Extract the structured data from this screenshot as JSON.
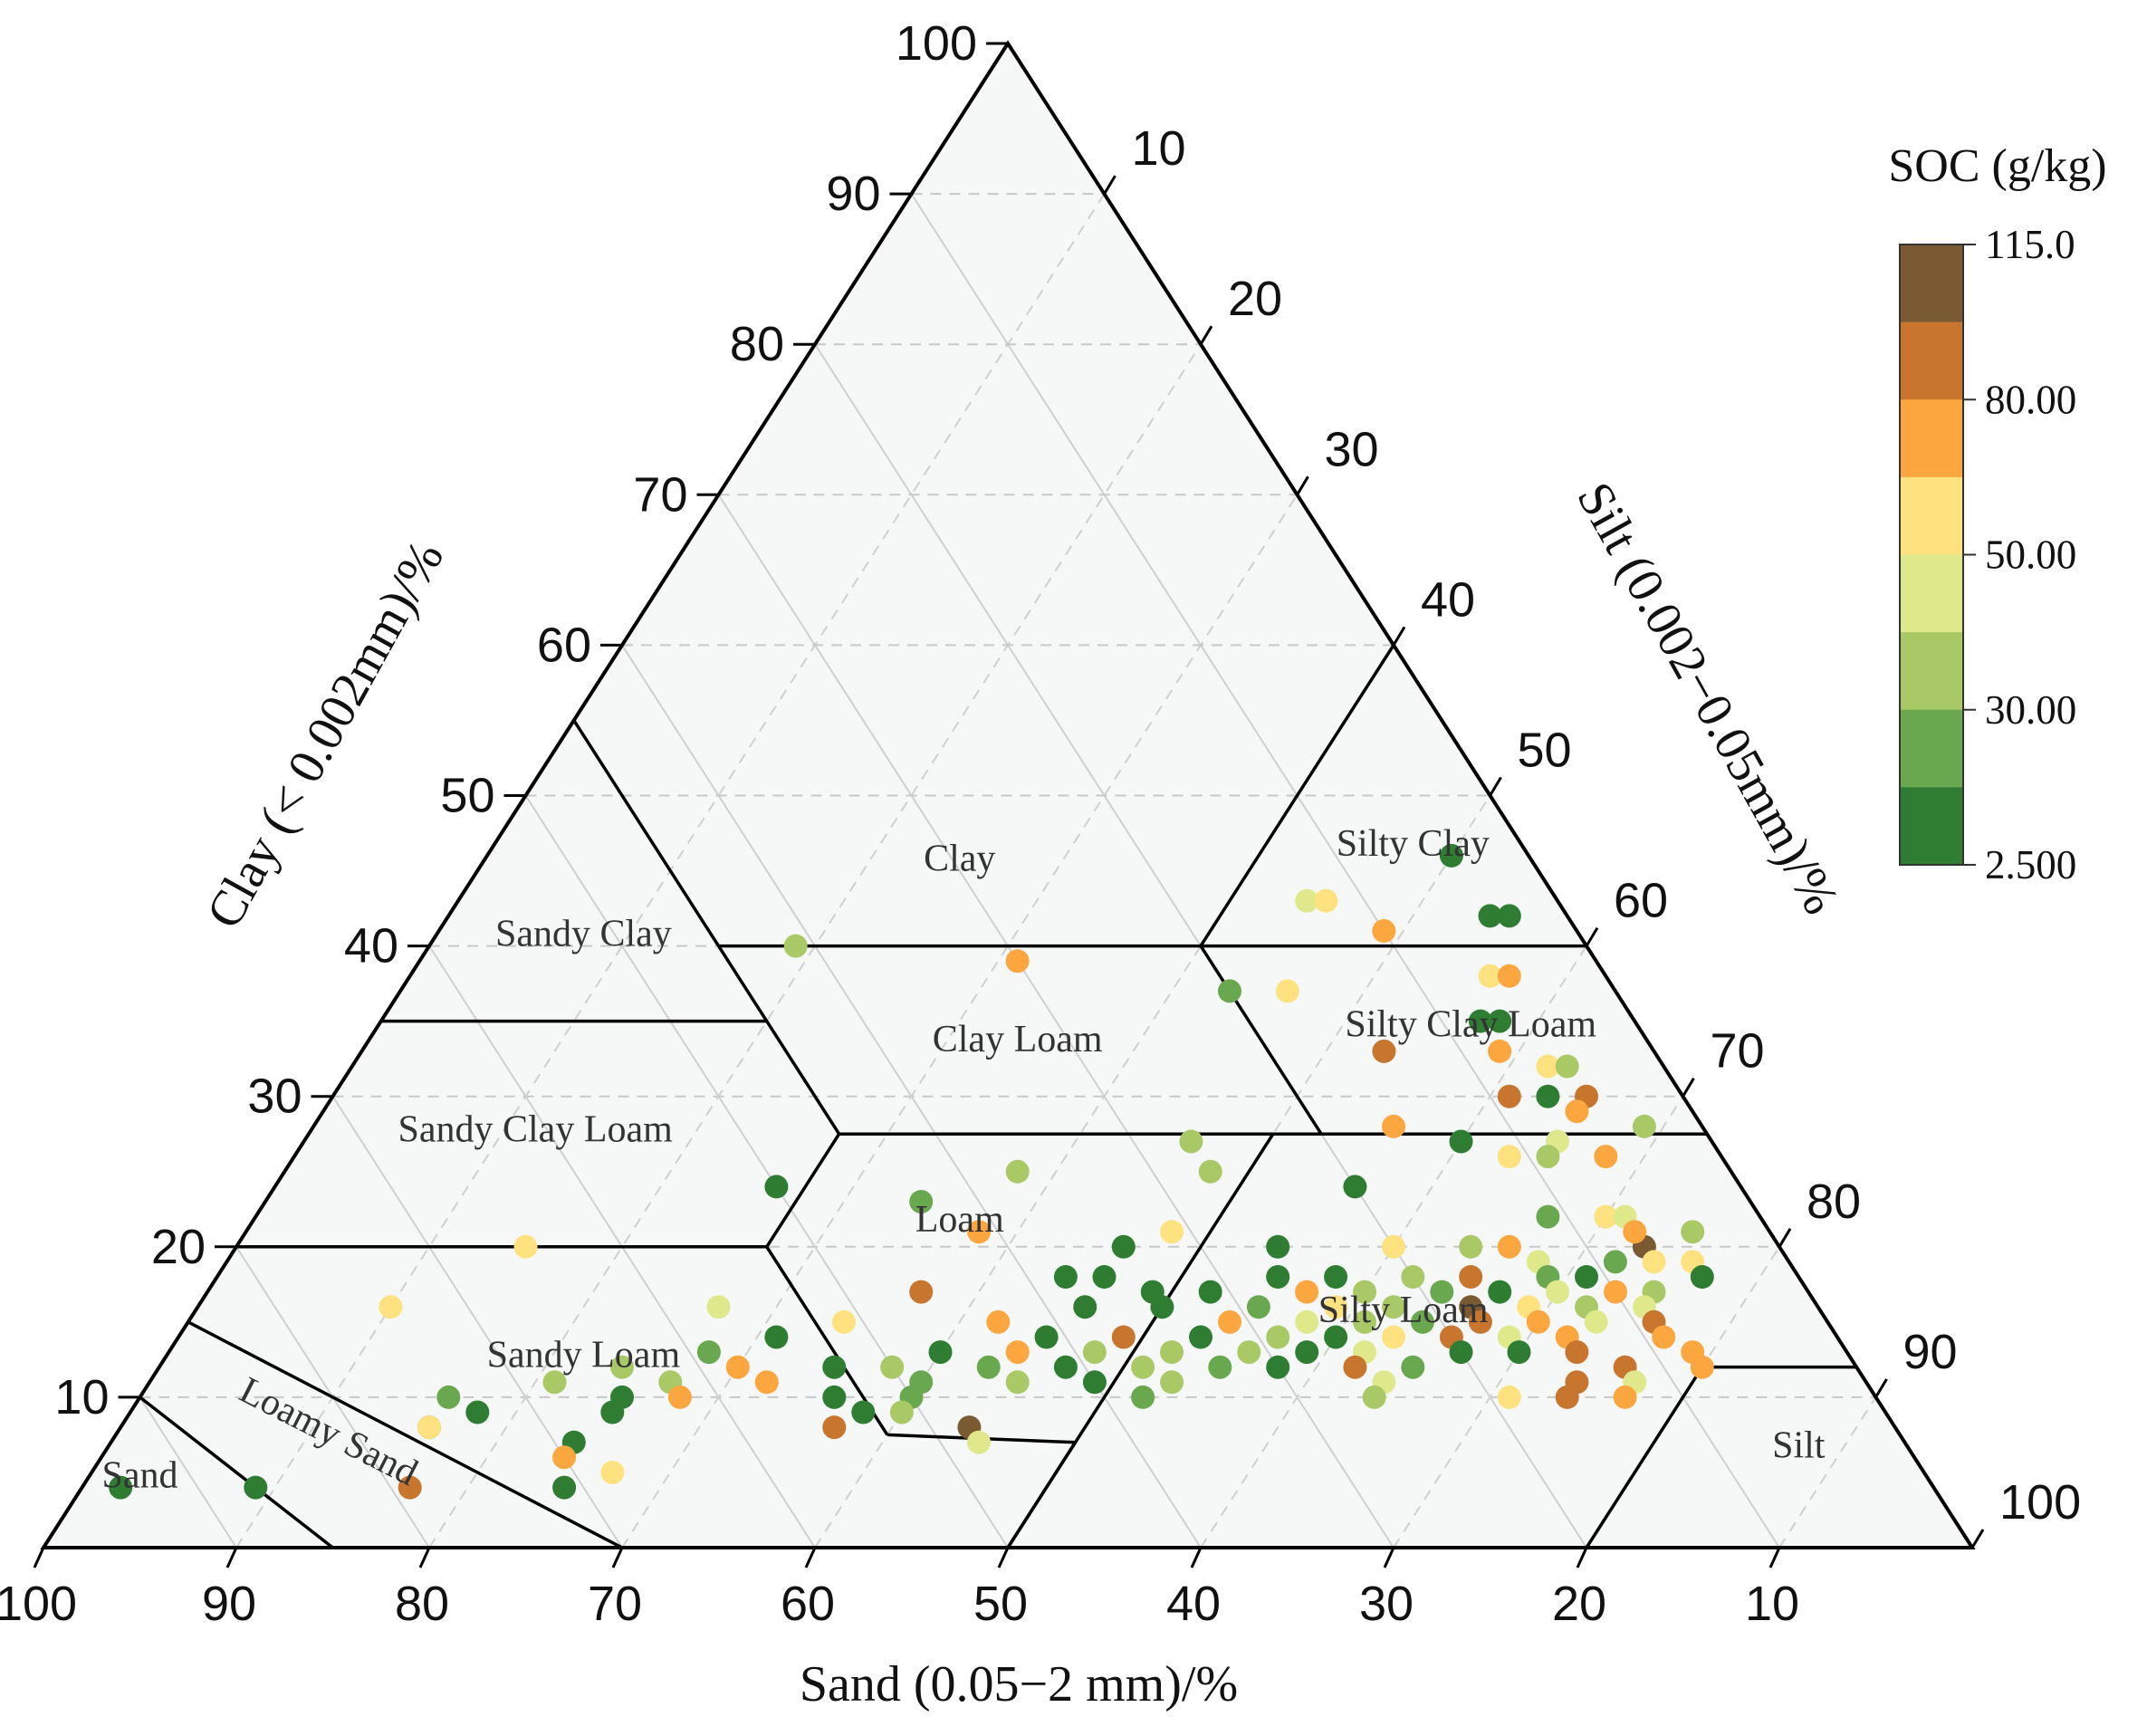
{
  "chart_data": {
    "type": "scatter",
    "subtype": "ternary",
    "axes": {
      "sand": {
        "title": "Sand (0.05−2 mm)/%",
        "ticks": [
          "100",
          "90",
          "80",
          "70",
          "60",
          "50",
          "40",
          "30",
          "20",
          "10"
        ]
      },
      "clay": {
        "title": "Clay (< 0.002mm)/%",
        "ticks": [
          "10",
          "20",
          "30",
          "40",
          "50",
          "60",
          "70",
          "80",
          "90",
          "100"
        ]
      },
      "silt": {
        "title": "Silt (0.002−0.05mm)/%",
        "ticks": [
          "10",
          "20",
          "30",
          "40",
          "50",
          "60",
          "70",
          "80",
          "90",
          "100"
        ]
      }
    },
    "regions": [
      {
        "name": "Clay",
        "label": "Clay"
      },
      {
        "name": "Sandy Clay",
        "label": "Sandy Clay"
      },
      {
        "name": "Silty Clay",
        "label": "Silty Clay"
      },
      {
        "name": "Clay Loam",
        "label": "Clay Loam"
      },
      {
        "name": "Silty Clay Loam",
        "label": "Silty Clay Loam"
      },
      {
        "name": "Sandy Clay Loam",
        "label": "Sandy Clay Loam"
      },
      {
        "name": "Loam",
        "label": "Loam"
      },
      {
        "name": "Sandy Loam",
        "label": "Sandy Loam"
      },
      {
        "name": "Silty Loam",
        "label": "Silty Loam"
      },
      {
        "name": "Loamy Sand",
        "label": "Loamy Sand"
      },
      {
        "name": "Sand",
        "label": "Sand"
      },
      {
        "name": "Silt",
        "label": "Silt"
      }
    ],
    "colorbar": {
      "title": "SOC (g/kg)",
      "labels": [
        "115.0",
        "80.00",
        "50.00",
        "30.00",
        "2.500"
      ],
      "bands": [
        "#7a5a32",
        "#c8752e",
        "#fca63f",
        "#fde27f",
        "#dfe98b",
        "#a9c966",
        "#6aa84f",
        "#2e7d32"
      ]
    },
    "points": [
      {
        "clay": 46,
        "silt": 50,
        "soc": 5
      },
      {
        "clay": 42,
        "silt": 54,
        "soc": 5
      },
      {
        "clay": 42,
        "silt": 55,
        "soc": 5
      },
      {
        "clay": 43,
        "silt": 44,
        "soc": 40
      },
      {
        "clay": 43,
        "silt": 45,
        "soc": 45
      },
      {
        "clay": 41,
        "silt": 49,
        "soc": 55
      },
      {
        "clay": 40,
        "silt": 19,
        "soc": 30
      },
      {
        "clay": 39,
        "silt": 31,
        "soc": 55
      },
      {
        "clay": 37,
        "silt": 43,
        "soc": 15
      },
      {
        "clay": 37,
        "silt": 46,
        "soc": 45
      },
      {
        "clay": 38,
        "silt": 56,
        "soc": 50
      },
      {
        "clay": 38,
        "silt": 57,
        "soc": 55
      },
      {
        "clay": 35,
        "silt": 57,
        "soc": 5
      },
      {
        "clay": 35,
        "silt": 58,
        "soc": 5
      },
      {
        "clay": 33,
        "silt": 53,
        "soc": 70
      },
      {
        "clay": 33,
        "silt": 59,
        "soc": 55
      },
      {
        "clay": 32,
        "silt": 62,
        "soc": 50
      },
      {
        "clay": 32,
        "silt": 63,
        "soc": 25
      },
      {
        "clay": 30,
        "silt": 63,
        "soc": 10
      },
      {
        "clay": 30,
        "silt": 61,
        "soc": 95
      },
      {
        "clay": 30,
        "silt": 65,
        "soc": 75
      },
      {
        "clay": 29,
        "silt": 65,
        "soc": 55
      },
      {
        "clay": 28,
        "silt": 69,
        "soc": 30
      },
      {
        "clay": 28,
        "silt": 56,
        "soc": 55
      },
      {
        "clay": 27,
        "silt": 46,
        "soc": 30
      },
      {
        "clay": 27,
        "silt": 65,
        "soc": 40
      },
      {
        "clay": 27,
        "silt": 60,
        "soc": 5
      },
      {
        "clay": 26,
        "silt": 63,
        "soc": 50
      },
      {
        "clay": 26,
        "silt": 65,
        "soc": 25
      },
      {
        "clay": 26,
        "silt": 68,
        "soc": 55
      },
      {
        "clay": 25,
        "silt": 38,
        "soc": 30
      },
      {
        "clay": 25,
        "silt": 48,
        "soc": 35
      },
      {
        "clay": 24,
        "silt": 26,
        "soc": 5
      },
      {
        "clay": 24,
        "silt": 56,
        "soc": 5
      },
      {
        "clay": 23,
        "silt": 34,
        "soc": 15
      },
      {
        "clay": 22,
        "silt": 67,
        "soc": 15
      },
      {
        "clay": 22,
        "silt": 70,
        "soc": 50
      },
      {
        "clay": 22,
        "silt": 71,
        "soc": 40
      },
      {
        "clay": 21,
        "silt": 38,
        "soc": 55
      },
      {
        "clay": 21,
        "silt": 48,
        "soc": 50
      },
      {
        "clay": 20,
        "silt": 64,
        "soc": 30
      },
      {
        "clay": 20,
        "silt": 73,
        "soc": 100
      },
      {
        "clay": 21,
        "silt": 72,
        "soc": 60
      },
      {
        "clay": 21,
        "silt": 75,
        "soc": 30
      },
      {
        "clay": 20,
        "silt": 46,
        "soc": 10
      },
      {
        "clay": 20,
        "silt": 54,
        "soc": 5
      },
      {
        "clay": 20,
        "silt": 60,
        "soc": 50
      },
      {
        "clay": 20,
        "silt": 66,
        "soc": 60
      },
      {
        "clay": 19,
        "silt": 68,
        "soc": 40
      },
      {
        "clay": 19,
        "silt": 72,
        "soc": 20
      },
      {
        "clay": 19,
        "silt": 74,
        "soc": 45
      },
      {
        "clay": 19,
        "silt": 76,
        "soc": 50
      },
      {
        "clay": 18,
        "silt": 44,
        "soc": 5
      },
      {
        "clay": 18,
        "silt": 46,
        "soc": 5
      },
      {
        "clay": 18,
        "silt": 55,
        "soc": 5
      },
      {
        "clay": 18,
        "silt": 58,
        "soc": 5
      },
      {
        "clay": 18,
        "silt": 62,
        "soc": 30
      },
      {
        "clay": 18,
        "silt": 65,
        "soc": 70
      },
      {
        "clay": 18,
        "silt": 69,
        "soc": 15
      },
      {
        "clay": 18,
        "silt": 71,
        "soc": 5
      },
      {
        "clay": 18,
        "silt": 77,
        "soc": 5
      },
      {
        "clay": 17,
        "silt": 37,
        "soc": 70
      },
      {
        "clay": 17,
        "silt": 49,
        "soc": 5
      },
      {
        "clay": 17,
        "silt": 52,
        "soc": 5
      },
      {
        "clay": 17,
        "silt": 57,
        "soc": 60
      },
      {
        "clay": 17,
        "silt": 60,
        "soc": 30
      },
      {
        "clay": 17,
        "silt": 64,
        "soc": 15
      },
      {
        "clay": 17,
        "silt": 67,
        "soc": 5
      },
      {
        "clay": 17,
        "silt": 70,
        "soc": 40
      },
      {
        "clay": 17,
        "silt": 73,
        "soc": 60
      },
      {
        "clay": 17,
        "silt": 75,
        "soc": 30
      },
      {
        "clay": 16,
        "silt": 27,
        "soc": 40
      },
      {
        "clay": 16,
        "silt": 46,
        "soc": 5
      },
      {
        "clay": 16,
        "silt": 50,
        "soc": 5
      },
      {
        "clay": 16,
        "silt": 55,
        "soc": 15
      },
      {
        "clay": 16,
        "silt": 59,
        "soc": 50
      },
      {
        "clay": 16,
        "silt": 62,
        "soc": 25
      },
      {
        "clay": 16,
        "silt": 66,
        "soc": 100
      },
      {
        "clay": 16,
        "silt": 69,
        "soc": 45
      },
      {
        "clay": 16,
        "silt": 72,
        "soc": 25
      },
      {
        "clay": 16,
        "silt": 75,
        "soc": 40
      },
      {
        "clay": 15,
        "silt": 34,
        "soc": 50
      },
      {
        "clay": 15,
        "silt": 42,
        "soc": 55
      },
      {
        "clay": 15,
        "silt": 54,
        "soc": 55
      },
      {
        "clay": 15,
        "silt": 58,
        "soc": 40
      },
      {
        "clay": 15,
        "silt": 61,
        "soc": 30
      },
      {
        "clay": 15,
        "silt": 64,
        "soc": 20
      },
      {
        "clay": 15,
        "silt": 67,
        "soc": 80
      },
      {
        "clay": 15,
        "silt": 70,
        "soc": 60
      },
      {
        "clay": 15,
        "silt": 73,
        "soc": 40
      },
      {
        "clay": 15,
        "silt": 76,
        "soc": 65
      },
      {
        "clay": 14,
        "silt": 31,
        "soc": 5
      },
      {
        "clay": 14,
        "silt": 45,
        "soc": 5
      },
      {
        "clay": 14,
        "silt": 49,
        "soc": 70
      },
      {
        "clay": 14,
        "silt": 53,
        "soc": 5
      },
      {
        "clay": 14,
        "silt": 57,
        "soc": 30
      },
      {
        "clay": 14,
        "silt": 60,
        "soc": 5
      },
      {
        "clay": 14,
        "silt": 63,
        "soc": 45
      },
      {
        "clay": 14,
        "silt": 66,
        "soc": 90
      },
      {
        "clay": 14,
        "silt": 69,
        "soc": 40
      },
      {
        "clay": 14,
        "silt": 72,
        "soc": 55
      },
      {
        "clay": 14,
        "silt": 77,
        "soc": 60
      },
      {
        "clay": 13,
        "silt": 28,
        "soc": 15
      },
      {
        "clay": 13,
        "silt": 40,
        "soc": 5
      },
      {
        "clay": 13,
        "silt": 44,
        "soc": 55
      },
      {
        "clay": 13,
        "silt": 48,
        "soc": 30
      },
      {
        "clay": 13,
        "silt": 52,
        "soc": 30
      },
      {
        "clay": 13,
        "silt": 56,
        "soc": 30
      },
      {
        "clay": 13,
        "silt": 59,
        "soc": 5
      },
      {
        "clay": 13,
        "silt": 62,
        "soc": 40
      },
      {
        "clay": 13,
        "silt": 67,
        "soc": 5
      },
      {
        "clay": 13,
        "silt": 70,
        "soc": 5
      },
      {
        "clay": 13,
        "silt": 73,
        "soc": 75
      },
      {
        "clay": 13,
        "silt": 79,
        "soc": 60
      },
      {
        "clay": 12,
        "silt": 24,
        "soc": 30
      },
      {
        "clay": 12,
        "silt": 30,
        "soc": 55
      },
      {
        "clay": 12,
        "silt": 35,
        "soc": 5
      },
      {
        "clay": 12,
        "silt": 38,
        "soc": 30
      },
      {
        "clay": 12,
        "silt": 43,
        "soc": 15
      },
      {
        "clay": 12,
        "silt": 47,
        "soc": 5
      },
      {
        "clay": 12,
        "silt": 51,
        "soc": 30
      },
      {
        "clay": 12,
        "silt": 55,
        "soc": 15
      },
      {
        "clay": 12,
        "silt": 58,
        "soc": 5
      },
      {
        "clay": 12,
        "silt": 62,
        "soc": 70
      },
      {
        "clay": 12,
        "silt": 65,
        "soc": 15
      },
      {
        "clay": 12,
        "silt": 76,
        "soc": 75
      },
      {
        "clay": 12,
        "silt": 80,
        "soc": 60
      },
      {
        "clay": 11,
        "silt": 21,
        "soc": 30
      },
      {
        "clay": 11,
        "silt": 27,
        "soc": 30
      },
      {
        "clay": 11,
        "silt": 32,
        "soc": 55
      },
      {
        "clay": 11,
        "silt": 40,
        "soc": 15
      },
      {
        "clay": 11,
        "silt": 45,
        "soc": 35
      },
      {
        "clay": 11,
        "silt": 49,
        "soc": 5
      },
      {
        "clay": 11,
        "silt": 53,
        "soc": 30
      },
      {
        "clay": 11,
        "silt": 64,
        "soc": 40
      },
      {
        "clay": 11,
        "silt": 74,
        "soc": 70
      },
      {
        "clay": 11,
        "silt": 77,
        "soc": 40
      },
      {
        "clay": 10,
        "silt": 16,
        "soc": 15
      },
      {
        "clay": 10,
        "silt": 25,
        "soc": 5
      },
      {
        "clay": 10,
        "silt": 28,
        "soc": 55
      },
      {
        "clay": 10,
        "silt": 36,
        "soc": 5
      },
      {
        "clay": 10,
        "silt": 40,
        "soc": 15
      },
      {
        "clay": 10,
        "silt": 52,
        "soc": 20
      },
      {
        "clay": 10,
        "silt": 64,
        "soc": 35
      },
      {
        "clay": 10,
        "silt": 71,
        "soc": 50
      },
      {
        "clay": 10,
        "silt": 74,
        "soc": 75
      },
      {
        "clay": 10,
        "silt": 77,
        "soc": 60
      },
      {
        "clay": 9,
        "silt": 18,
        "soc": 5
      },
      {
        "clay": 9,
        "silt": 25,
        "soc": 5
      },
      {
        "clay": 9,
        "silt": 38,
        "soc": 5
      },
      {
        "clay": 9,
        "silt": 40,
        "soc": 30
      },
      {
        "clay": 8,
        "silt": 16,
        "soc": 5
      },
      {
        "clay": 8,
        "silt": 37,
        "soc": 90
      },
      {
        "clay": 8,
        "silt": 44,
        "soc": 110
      },
      {
        "clay": 7,
        "silt": 24,
        "soc": 5
      },
      {
        "clay": 7,
        "silt": 45,
        "soc": 40
      },
      {
        "clay": 6,
        "silt": 24,
        "soc": 55
      },
      {
        "clay": 5,
        "silt": 27,
        "soc": 50
      },
      {
        "clay": 20,
        "silt": 15,
        "soc": 50
      },
      {
        "clay": 16,
        "silt": 10,
        "soc": 50
      },
      {
        "clay": 8,
        "silt": 16,
        "soc": 45
      },
      {
        "clay": 4,
        "silt": 25,
        "soc": 5
      },
      {
        "clay": 4,
        "silt": 17,
        "soc": 70
      },
      {
        "clay": 4,
        "silt": 9,
        "soc": 5
      },
      {
        "clay": 4,
        "silt": 2,
        "soc": 5
      }
    ]
  }
}
